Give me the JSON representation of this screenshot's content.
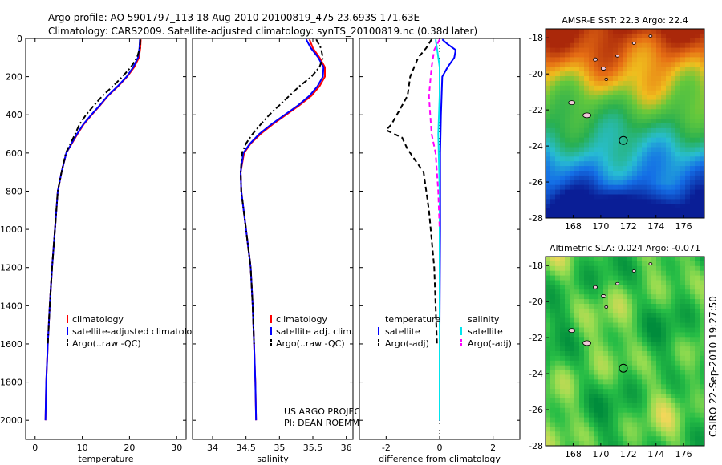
{
  "header": {
    "line1": "Argo profile: AO 5901797_113 18-Aug-2010 20100819_475 23.693S 171.63E",
    "line2": "Climatology: CARS2009. Satellite-adjusted climatology: synTS_20100819.nc (0.38d later)"
  },
  "credit": "CSIRO 22-Sep-2010 19:27:50",
  "chart_data": [
    {
      "type": "line",
      "id": "temperature",
      "xlabel": "temperature",
      "ylabel": "",
      "xlim": [
        -2,
        32
      ],
      "ylim": [
        2100,
        0
      ],
      "y_reversed": true,
      "xticks": [
        "0",
        "10",
        "20",
        "30"
      ],
      "yticks": [
        "0",
        "200",
        "400",
        "600",
        "800",
        "1000",
        "1200",
        "1400",
        "1600",
        "1800",
        "2000"
      ],
      "legend_position": "lower-right",
      "series": [
        {
          "name": "climatology",
          "color": "#ff0000",
          "style": "solid",
          "x": [
            22.4,
            22.3,
            22.0,
            21.0,
            19.5,
            17.6,
            15.5,
            13.8,
            12.0,
            10.3,
            9.0,
            7.8,
            6.6,
            5.6,
            4.8,
            4.2,
            3.6,
            3.1,
            2.7,
            2.35,
            2.2
          ],
          "y": [
            5,
            50,
            100,
            150,
            200,
            250,
            300,
            350,
            400,
            450,
            500,
            550,
            600,
            700,
            800,
            1000,
            1200,
            1400,
            1600,
            1800,
            2000
          ]
        },
        {
          "name": "satellite-adjusted climatology",
          "color": "#0000ff",
          "style": "solid",
          "x": [
            22.2,
            22.1,
            21.8,
            20.8,
            19.4,
            17.5,
            15.4,
            13.7,
            11.9,
            10.2,
            8.9,
            7.7,
            6.6,
            5.6,
            4.8,
            4.2,
            3.6,
            3.1,
            2.7,
            2.35,
            2.2
          ],
          "y": [
            5,
            50,
            100,
            150,
            200,
            250,
            300,
            350,
            400,
            450,
            500,
            550,
            600,
            700,
            800,
            1000,
            1200,
            1400,
            1600,
            1800,
            2000
          ]
        },
        {
          "name": "Argo(..raw -QC)",
          "color": "#000000",
          "style": "dash-dot",
          "x": [
            22.3,
            22.2,
            21.6,
            20.3,
            18.5,
            16.5,
            14.3,
            12.5,
            10.8,
            9.4,
            8.5,
            7.5,
            6.5,
            5.6,
            4.8,
            4.2,
            3.6,
            3.1,
            2.7
          ],
          "y": [
            5,
            50,
            100,
            150,
            200,
            250,
            300,
            350,
            400,
            450,
            500,
            550,
            600,
            700,
            800,
            1000,
            1200,
            1400,
            1600
          ]
        }
      ],
      "annotations": []
    },
    {
      "type": "line",
      "id": "salinity",
      "xlabel": "salinity",
      "ylabel": "",
      "xlim": [
        33.7,
        36.1
      ],
      "ylim": [
        2100,
        0
      ],
      "y_reversed": true,
      "xticks": [
        "34",
        "34.5",
        "35",
        "35.5",
        "36"
      ],
      "legend_position": "lower-right",
      "series": [
        {
          "name": "climatology",
          "color": "#ff0000",
          "style": "solid",
          "x": [
            35.45,
            35.5,
            35.6,
            35.68,
            35.68,
            35.6,
            35.48,
            35.3,
            35.1,
            34.9,
            34.72,
            34.57,
            34.47,
            34.42,
            34.43,
            34.5,
            34.57,
            34.6,
            34.62,
            34.64,
            34.65
          ],
          "y": [
            5,
            50,
            100,
            150,
            200,
            250,
            300,
            350,
            400,
            450,
            500,
            550,
            600,
            700,
            800,
            1000,
            1200,
            1400,
            1600,
            1800,
            2000
          ]
        },
        {
          "name": "satellite adj. clim.",
          "color": "#0000ff",
          "style": "solid",
          "x": [
            35.4,
            35.47,
            35.58,
            35.66,
            35.65,
            35.57,
            35.45,
            35.28,
            35.08,
            34.88,
            34.7,
            34.56,
            34.46,
            34.42,
            34.43,
            34.5,
            34.57,
            34.6,
            34.62,
            34.64,
            34.65
          ],
          "y": [
            5,
            50,
            100,
            150,
            200,
            250,
            300,
            350,
            400,
            450,
            500,
            550,
            600,
            700,
            800,
            1000,
            1200,
            1400,
            1600,
            1800,
            2000
          ]
        },
        {
          "name": "Argo(..raw -QC)",
          "color": "#000000",
          "style": "dash-dot",
          "x": [
            35.55,
            35.62,
            35.65,
            35.6,
            35.48,
            35.3,
            35.15,
            35.0,
            34.85,
            34.72,
            34.6,
            34.5,
            34.44,
            34.42,
            34.43,
            34.5,
            34.57,
            34.6,
            34.62
          ],
          "y": [
            5,
            50,
            100,
            150,
            200,
            250,
            300,
            350,
            400,
            450,
            500,
            550,
            600,
            700,
            800,
            1000,
            1200,
            1400,
            1600
          ]
        }
      ],
      "annotations": [
        "US ARGO PROJECT",
        "PI: DEAN ROEMMICH"
      ]
    },
    {
      "type": "line",
      "id": "difference",
      "xlabel": "difference from climatology",
      "ylabel": "",
      "xlim": [
        -3,
        3
      ],
      "ylim": [
        2100,
        0
      ],
      "y_reversed": true,
      "xticks": [
        "-2",
        "0",
        "2"
      ],
      "legend_position": "lower-right",
      "legend_headers": [
        "temperature",
        "salinity"
      ],
      "series": [
        {
          "name": "satellite",
          "group": "temperature",
          "color": "#0000ff",
          "style": "solid",
          "x": [
            0.1,
            0.3,
            0.6,
            0.55,
            0.3,
            0.1,
            0.05,
            0.02,
            0.02,
            0.0,
            0.0
          ],
          "y": [
            5,
            30,
            60,
            100,
            150,
            200,
            400,
            600,
            1000,
            1500,
            2000
          ]
        },
        {
          "name": "Argo(-adj)",
          "group": "temperature",
          "color": "#000000",
          "style": "dashed",
          "x": [
            -0.3,
            -0.5,
            -0.8,
            -1.1,
            -1.2,
            -1.6,
            -1.8,
            -2.0,
            -1.4,
            -1.2,
            -0.6,
            -0.4,
            -0.2,
            -0.1
          ],
          "y": [
            5,
            50,
            100,
            200,
            300,
            400,
            450,
            480,
            520,
            580,
            700,
            900,
            1200,
            1600
          ]
        },
        {
          "name": "satellite",
          "group": "salinity",
          "color": "#00e5ee",
          "style": "solid",
          "x": [
            -0.15,
            -0.1,
            0.0,
            0.0,
            -0.05,
            0.0,
            0.0,
            0.0
          ],
          "y": [
            5,
            50,
            150,
            300,
            500,
            800,
            1400,
            2000
          ]
        },
        {
          "name": "Argo(-adj)",
          "group": "salinity",
          "color": "#ff00ff",
          "style": "dashed",
          "x": [
            0.0,
            -0.2,
            -0.3,
            -0.4,
            -0.35,
            -0.3,
            -0.15,
            -0.05,
            0.0
          ],
          "y": [
            5,
            60,
            150,
            300,
            400,
            500,
            600,
            800,
            1000
          ]
        }
      ],
      "annotations": []
    },
    {
      "type": "heatmap",
      "id": "sst-map",
      "title": "AMSR-E SST: 22.3 Argo: 22.4",
      "xlim": [
        166,
        177.5
      ],
      "ylim": [
        -28,
        -17.5
      ],
      "xticks": [
        "168",
        "170",
        "172",
        "174",
        "176"
      ],
      "yticks": [
        "-18",
        "-20",
        "-22",
        "-24",
        "-26",
        "-28"
      ],
      "marker": {
        "lon": 171.63,
        "lat": -23.693
      },
      "colors": {
        "warm": "#b42800",
        "cool": "#0a1e96"
      }
    },
    {
      "type": "heatmap",
      "id": "sla-map",
      "title": "Altimetric SLA: 0.024 Argo: -0.071",
      "xlim": [
        166,
        177.5
      ],
      "ylim": [
        -28,
        -17.5
      ],
      "xticks": [
        "168",
        "170",
        "172",
        "174",
        "176"
      ],
      "yticks": [
        "-18",
        "-20",
        "-22",
        "-24",
        "-26",
        "-28"
      ],
      "marker": {
        "lon": 171.63,
        "lat": -23.693
      },
      "colors": {
        "high": "#f0d060",
        "low": "#008040"
      }
    }
  ]
}
